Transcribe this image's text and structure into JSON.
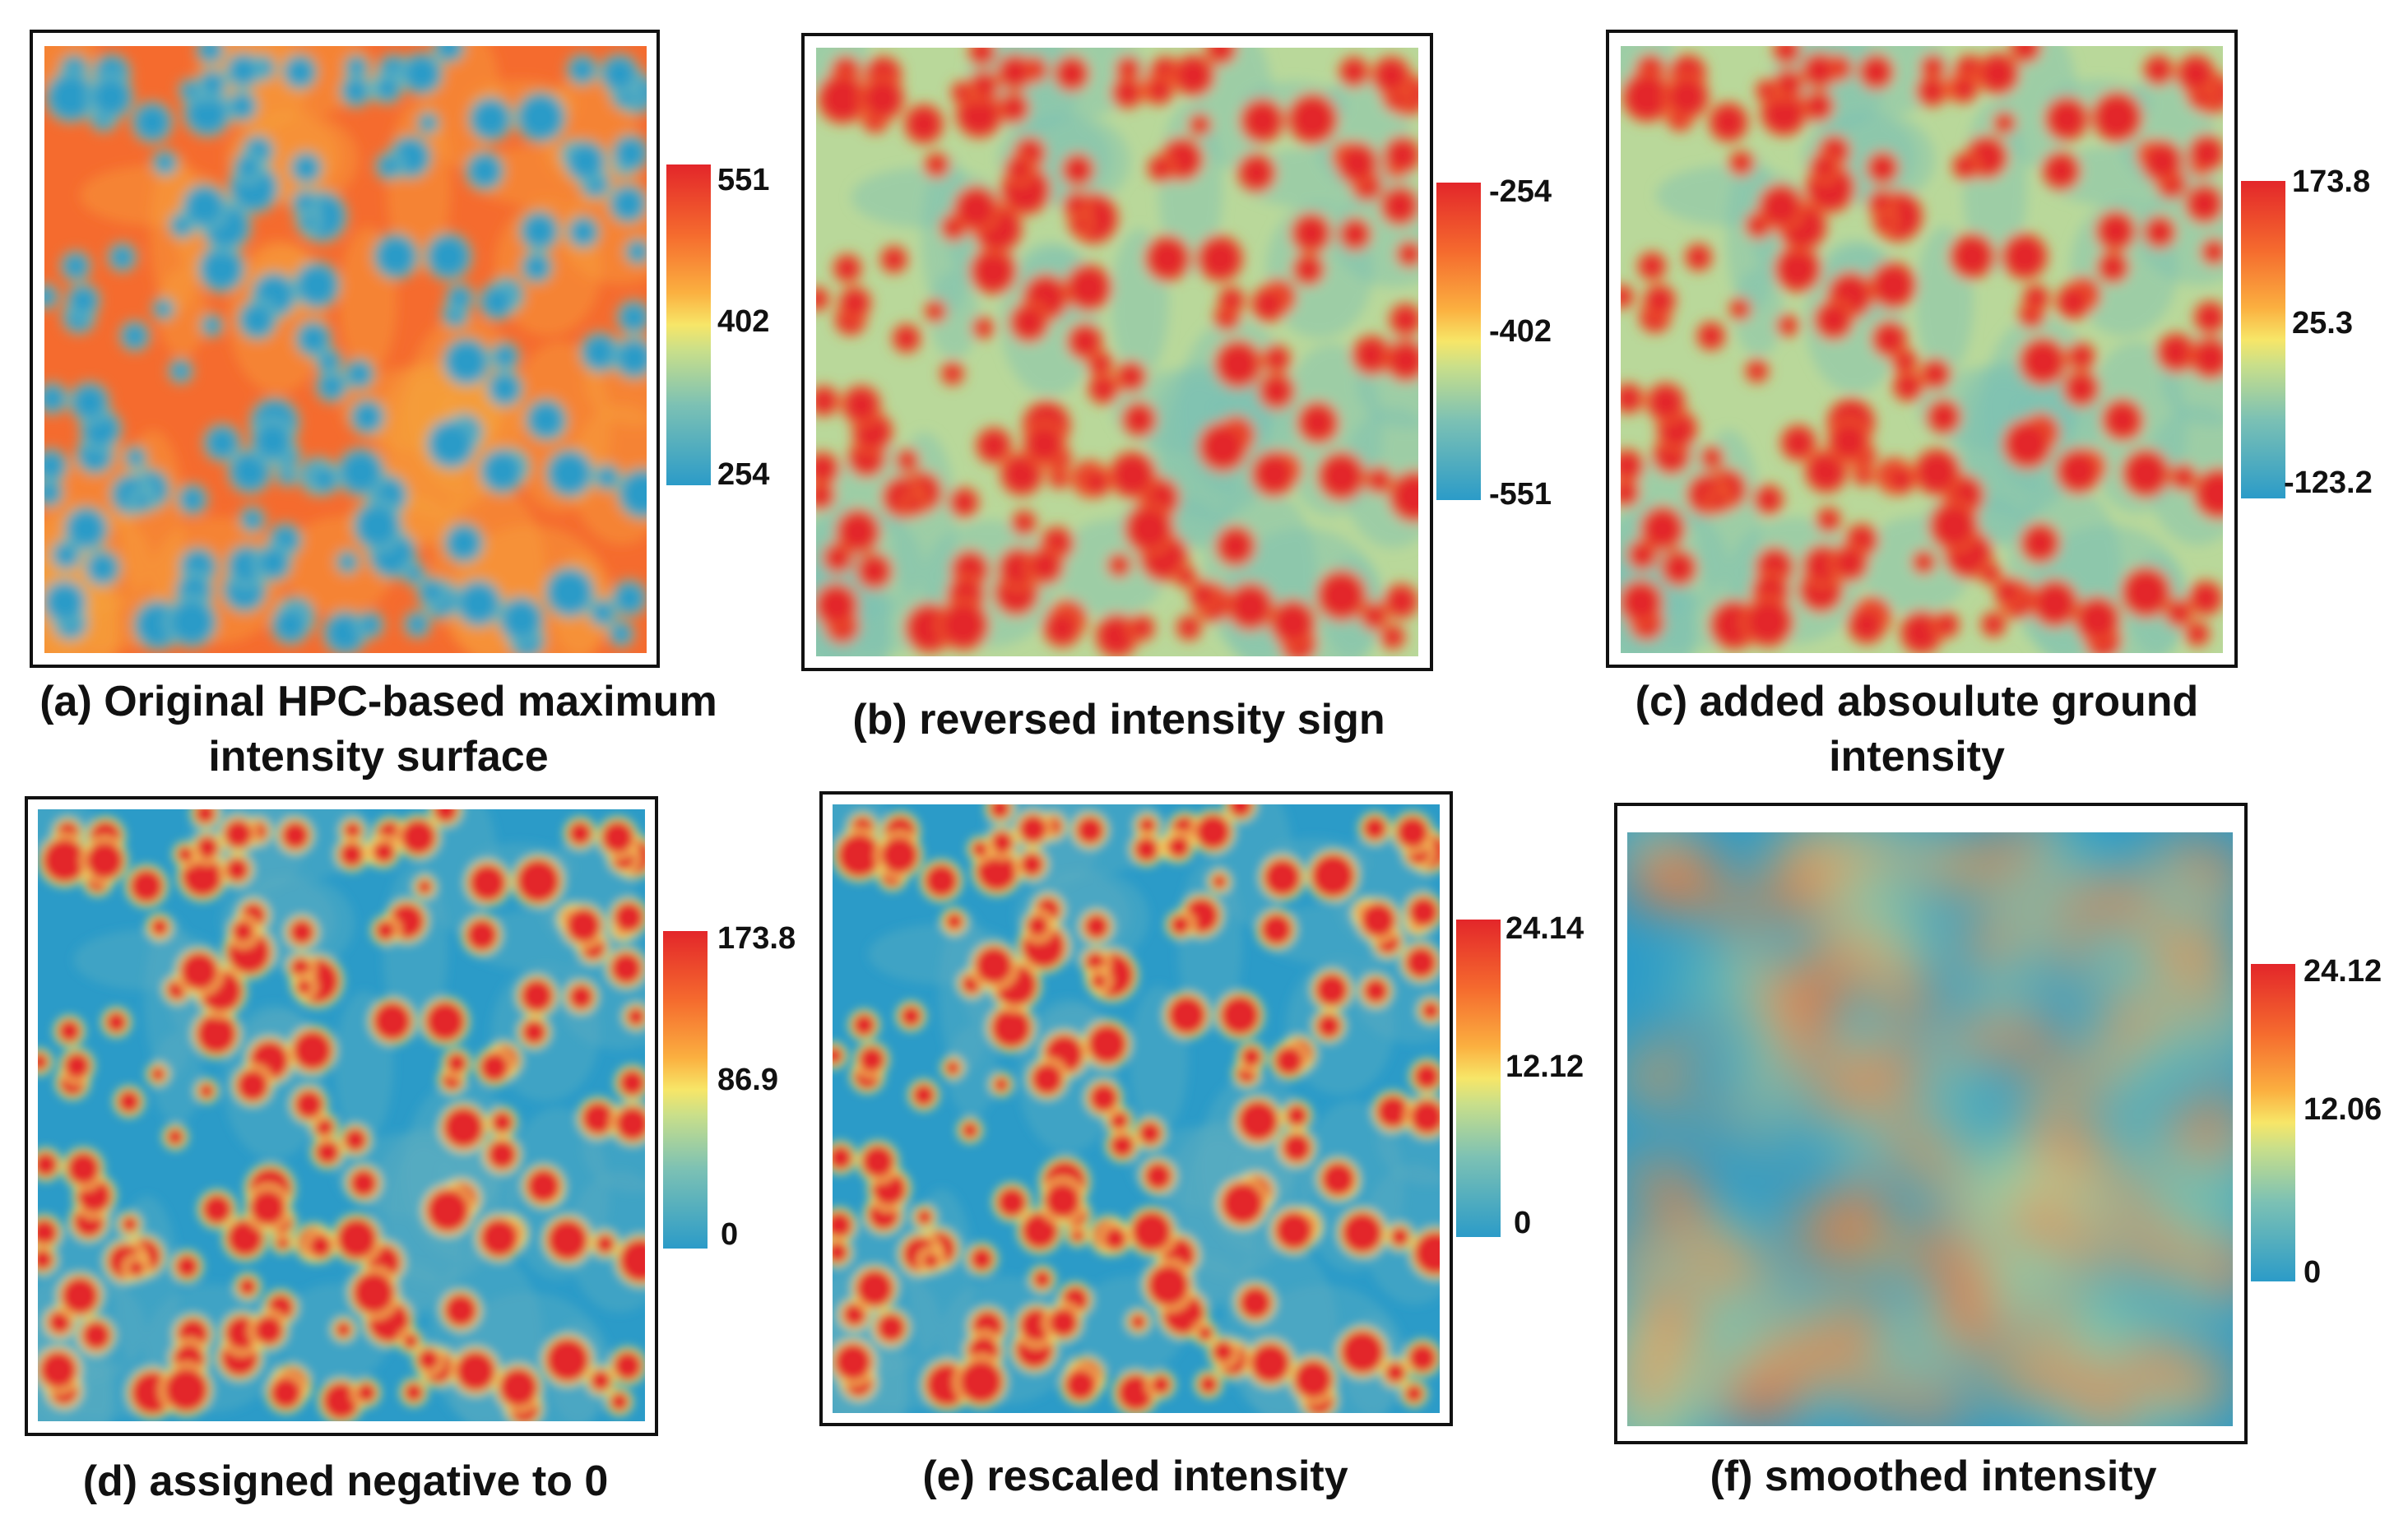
{
  "panels": [
    {
      "id": "a",
      "caption": "(a) Original HPC-based maximum intensity surface",
      "colorbar": {
        "max": "551",
        "mid": "402",
        "min": "254"
      },
      "scheme": "original"
    },
    {
      "id": "b",
      "caption": "(b) reversed intensity sign",
      "colorbar": {
        "max": "-254",
        "mid": "-402",
        "min": "-551"
      },
      "scheme": "reversed"
    },
    {
      "id": "c",
      "caption": "(c) added absoulute ground intensity",
      "colorbar": {
        "max": "173.8",
        "mid": "25.3",
        "min": "-123.2"
      },
      "scheme": "reversed"
    },
    {
      "id": "d",
      "caption": "(d) assigned negative to 0",
      "colorbar": {
        "max": "173.8",
        "mid": "86.9",
        "min": "0"
      },
      "scheme": "clipped"
    },
    {
      "id": "e",
      "caption": "(e) rescaled intensity",
      "colorbar": {
        "max": "24.14",
        "mid": "12.12",
        "min": "0"
      },
      "scheme": "clipped"
    },
    {
      "id": "f",
      "caption": "(f) smoothed intensity",
      "colorbar": {
        "max": "24.12",
        "mid": "12.06",
        "min": "0"
      },
      "scheme": "smoothed"
    }
  ],
  "colors": {
    "high": "#e3262a",
    "orange": "#f56b2e",
    "midyellow": "#f7e668",
    "lowteal": "#7cc1b4",
    "low": "#2b9bc8"
  }
}
